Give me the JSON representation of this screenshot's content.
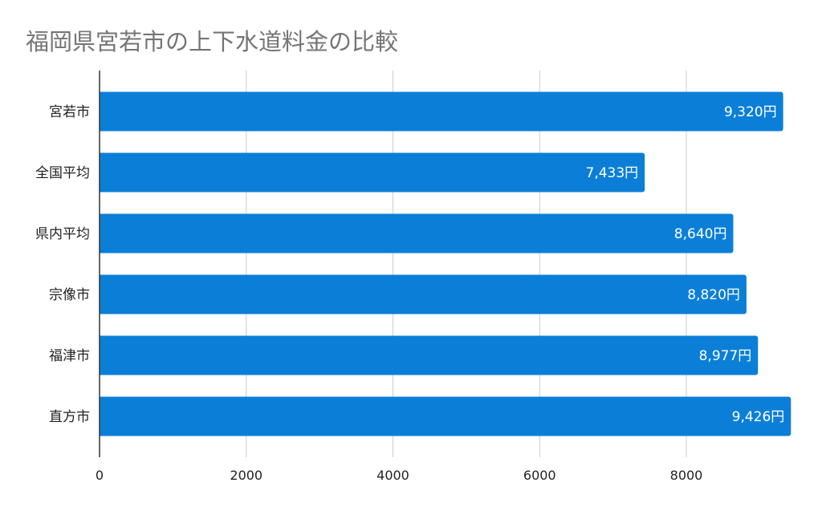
{
  "chart_data": {
    "type": "bar",
    "orientation": "horizontal",
    "title": "福岡県宮若市の上下水道料金の比較",
    "categories": [
      "宮若市",
      "全国平均",
      "県内平均",
      "宗像市",
      "福津市",
      "直方市"
    ],
    "values": [
      9320,
      7433,
      8640,
      8820,
      8977,
      9426
    ],
    "data_labels": [
      "9,320円",
      "7,433円",
      "8,640円",
      "8,820円",
      "8,977円",
      "9,426円"
    ],
    "xlim": [
      0,
      9500
    ],
    "xticks": [
      0,
      2000,
      4000,
      6000,
      8000
    ],
    "xtick_labels": [
      "0",
      "2000",
      "4000",
      "6000",
      "8000"
    ],
    "grid": true,
    "legend": "none",
    "bar_color": "#0b7fd8"
  }
}
